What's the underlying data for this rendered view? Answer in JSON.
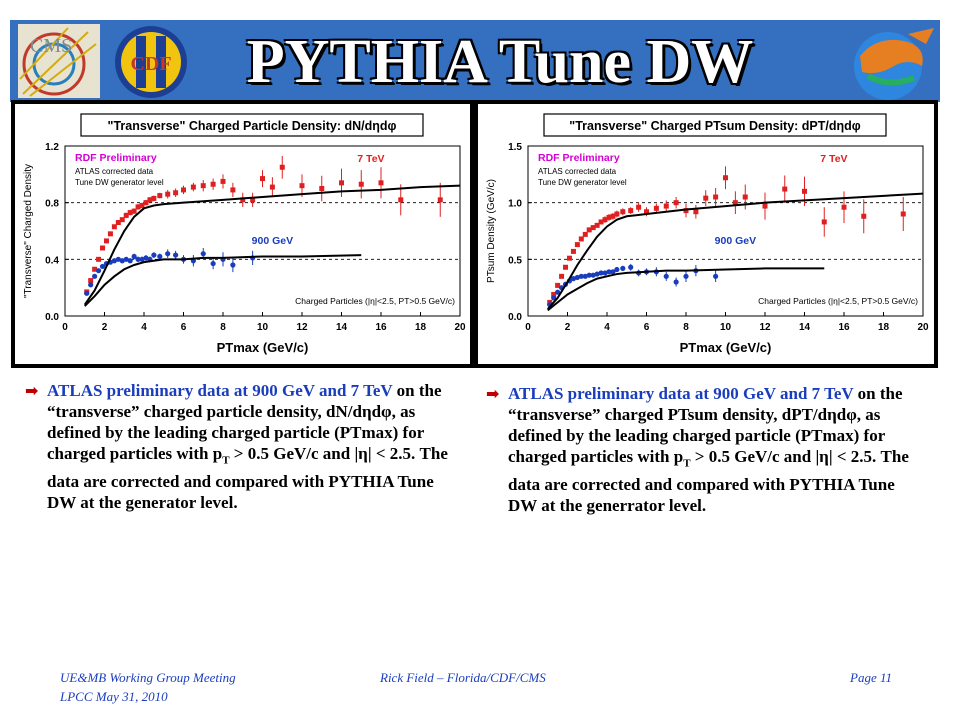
{
  "slide": {
    "title": "PYTHIA Tune DW",
    "logos": {
      "left": "CMS",
      "middle": "CDF",
      "right_icon": "florida-gator-icon"
    },
    "page": "Page 11",
    "footer_left_line1": "UE&MB Working Group Meeting",
    "footer_left_line2": "LPCC May 31, 2010",
    "footer_center": "Rick Field – Florida/CDF/CMS"
  },
  "left_bullet": {
    "p1_blue": "ATLAS preliminary data at 900 GeV and 7 TeV",
    "p2": " on the “transverse” charged particle density, dN/dηdφ, as defined by the leading charged particle (PTmax) for charged particles with p",
    "sub": "T",
    "p3": " > 0.5 GeV/c and |η| < 2.5. The data are corrected and compared with PYTHIA Tune DW at the generator level."
  },
  "right_bullet": {
    "p1_blue": "ATLAS preliminary data at 900 GeV and 7 TeV",
    "p2": " on the “transverse” charged PTsum density, dPT/dηdφ, as defined by the leading charged particle (PTmax) for charged particles with p",
    "sub": "T",
    "p3": " > 0.5 GeV/c and |η| < 2.5. The data are corrected and compared with PYTHIA Tune DW at the generrator level."
  },
  "chart_data": [
    {
      "type": "scatter",
      "title": "\"Transverse\" Charged Particle Density: dN/dηdφ",
      "xlabel": "PTmax (GeV/c)",
      "ylabel": "\"Transverse\" Charged Density",
      "xlim": [
        0,
        20
      ],
      "ylim": [
        0,
        1.2
      ],
      "xticks": [
        "0",
        "2",
        "4",
        "6",
        "8",
        "10",
        "12",
        "14",
        "16",
        "18",
        "20"
      ],
      "yticks": [
        "0.0",
        "0.4",
        "0.8",
        "1.2"
      ],
      "dashed_y": [
        0.4,
        0.8
      ],
      "annotations": [
        "RDF Preliminary",
        "ATLAS corrected data",
        "Tune DW generator level",
        "Charged Particles (|η|<2.5, PT>0.5 GeV/c)"
      ],
      "series": [
        {
          "name": "7 TeV",
          "color": "#e02020",
          "marker": "square",
          "x": [
            1.1,
            1.3,
            1.5,
            1.7,
            1.9,
            2.1,
            2.3,
            2.5,
            2.7,
            2.9,
            3.1,
            3.3,
            3.5,
            3.7,
            3.9,
            4.1,
            4.3,
            4.5,
            4.8,
            5.2,
            5.6,
            6.0,
            6.5,
            7.0,
            7.5,
            8.0,
            8.5,
            9.0,
            9.5,
            10.0,
            10.5,
            11.0,
            12.0,
            13.0,
            14.0,
            15.0,
            16.0,
            17.0,
            19.0
          ],
          "y": [
            0.17,
            0.25,
            0.33,
            0.4,
            0.48,
            0.53,
            0.58,
            0.63,
            0.66,
            0.68,
            0.71,
            0.73,
            0.74,
            0.77,
            0.78,
            0.8,
            0.82,
            0.83,
            0.85,
            0.86,
            0.87,
            0.89,
            0.91,
            0.92,
            0.93,
            0.95,
            0.89,
            0.82,
            0.82,
            0.97,
            0.91,
            1.05,
            0.92,
            0.9,
            0.94,
            0.93,
            0.94,
            0.82,
            0.82
          ],
          "err": [
            0.01,
            0.01,
            0.01,
            0.01,
            0.01,
            0.01,
            0.01,
            0.01,
            0.01,
            0.01,
            0.02,
            0.02,
            0.02,
            0.02,
            0.02,
            0.02,
            0.02,
            0.02,
            0.02,
            0.03,
            0.03,
            0.03,
            0.03,
            0.04,
            0.04,
            0.05,
            0.05,
            0.05,
            0.05,
            0.06,
            0.07,
            0.08,
            0.08,
            0.09,
            0.1,
            0.1,
            0.11,
            0.11,
            0.12
          ]
        },
        {
          "name": "900 GeV",
          "color": "#1a3dbd",
          "marker": "circle",
          "x": [
            1.1,
            1.3,
            1.5,
            1.7,
            1.9,
            2.1,
            2.3,
            2.5,
            2.7,
            2.9,
            3.1,
            3.3,
            3.5,
            3.7,
            3.9,
            4.1,
            4.3,
            4.5,
            4.8,
            5.2,
            5.6,
            6.0,
            6.5,
            7.0,
            7.5,
            8.0,
            8.5,
            9.5
          ],
          "y": [
            0.16,
            0.22,
            0.28,
            0.32,
            0.35,
            0.37,
            0.38,
            0.39,
            0.4,
            0.39,
            0.4,
            0.39,
            0.42,
            0.4,
            0.4,
            0.41,
            0.4,
            0.43,
            0.42,
            0.44,
            0.43,
            0.4,
            0.39,
            0.44,
            0.37,
            0.4,
            0.36,
            0.41
          ],
          "err": [
            0.01,
            0.01,
            0.01,
            0.01,
            0.01,
            0.01,
            0.01,
            0.01,
            0.01,
            0.01,
            0.01,
            0.01,
            0.02,
            0.02,
            0.02,
            0.02,
            0.02,
            0.02,
            0.02,
            0.03,
            0.03,
            0.03,
            0.04,
            0.04,
            0.04,
            0.05,
            0.05,
            0.05
          ]
        },
        {
          "name": "Tune DW 7 TeV",
          "color": "#000000",
          "marker": "line",
          "x": [
            1.0,
            1.5,
            2.0,
            2.5,
            3.0,
            3.5,
            4.0,
            4.5,
            5.0,
            6.0,
            7.0,
            8.0,
            10.0,
            12.0,
            14.0,
            16.0,
            18.0,
            20.0
          ],
          "y": [
            0.08,
            0.18,
            0.32,
            0.47,
            0.6,
            0.7,
            0.76,
            0.78,
            0.79,
            0.8,
            0.81,
            0.82,
            0.84,
            0.86,
            0.88,
            0.89,
            0.91,
            0.92
          ]
        },
        {
          "name": "Tune DW 900 GeV",
          "color": "#000000",
          "marker": "line",
          "x": [
            1.0,
            1.5,
            2.0,
            2.5,
            3.0,
            3.5,
            4.0,
            4.5,
            5.0,
            6.0,
            7.0,
            8.0,
            10.0,
            12.0,
            15.0
          ],
          "y": [
            0.07,
            0.14,
            0.22,
            0.28,
            0.33,
            0.36,
            0.38,
            0.39,
            0.4,
            0.4,
            0.41,
            0.41,
            0.42,
            0.42,
            0.43
          ]
        }
      ]
    },
    {
      "type": "scatter",
      "title": "\"Transverse\" Charged PTsum Density: dPT/dηdφ",
      "xlabel": "PTmax (GeV/c)",
      "ylabel": "PTsum Density (GeV/c)",
      "xlim": [
        0,
        20
      ],
      "ylim": [
        0,
        1.5
      ],
      "xticks": [
        "0",
        "2",
        "4",
        "6",
        "8",
        "10",
        "12",
        "14",
        "16",
        "18",
        "20"
      ],
      "yticks": [
        "0.0",
        "0.5",
        "1.0",
        "1.5"
      ],
      "dashed_y": [
        0.5,
        1.0
      ],
      "annotations": [
        "RDF Preliminary",
        "ATLAS corrected data",
        "Tune DW generator level",
        "Charged Particles (|η|<2.5, PT>0.5 GeV/c)"
      ],
      "series": [
        {
          "name": "7 TeV",
          "color": "#e02020",
          "marker": "square",
          "x": [
            1.1,
            1.3,
            1.5,
            1.7,
            1.9,
            2.1,
            2.3,
            2.5,
            2.7,
            2.9,
            3.1,
            3.3,
            3.5,
            3.7,
            3.9,
            4.1,
            4.3,
            4.5,
            4.8,
            5.2,
            5.6,
            6.0,
            6.5,
            7.0,
            7.5,
            8.0,
            8.5,
            9.0,
            9.5,
            10.0,
            10.5,
            11.0,
            12.0,
            13.0,
            14.0,
            15.0,
            16.0,
            17.0,
            19.0
          ],
          "y": [
            0.12,
            0.19,
            0.27,
            0.35,
            0.43,
            0.51,
            0.57,
            0.63,
            0.68,
            0.72,
            0.76,
            0.78,
            0.8,
            0.83,
            0.85,
            0.87,
            0.88,
            0.9,
            0.92,
            0.93,
            0.96,
            0.92,
            0.95,
            0.97,
            1.0,
            0.93,
            0.92,
            1.04,
            1.05,
            1.22,
            1.0,
            1.05,
            0.97,
            1.12,
            1.1,
            0.83,
            0.96,
            0.88,
            0.9
          ],
          "err": [
            0.01,
            0.01,
            0.01,
            0.01,
            0.01,
            0.01,
            0.01,
            0.01,
            0.02,
            0.02,
            0.02,
            0.02,
            0.02,
            0.02,
            0.03,
            0.03,
            0.03,
            0.03,
            0.03,
            0.03,
            0.04,
            0.04,
            0.04,
            0.05,
            0.05,
            0.06,
            0.06,
            0.07,
            0.08,
            0.1,
            0.1,
            0.11,
            0.12,
            0.12,
            0.13,
            0.13,
            0.14,
            0.15,
            0.15
          ]
        },
        {
          "name": "900 GeV",
          "color": "#1a3dbd",
          "marker": "circle",
          "x": [
            1.1,
            1.3,
            1.5,
            1.7,
            1.9,
            2.1,
            2.3,
            2.5,
            2.7,
            2.9,
            3.1,
            3.3,
            3.5,
            3.7,
            3.9,
            4.1,
            4.3,
            4.5,
            4.8,
            5.2,
            5.6,
            6.0,
            6.5,
            7.0,
            7.5,
            8.0,
            8.5,
            9.5
          ],
          "y": [
            0.1,
            0.16,
            0.21,
            0.25,
            0.28,
            0.31,
            0.33,
            0.34,
            0.35,
            0.35,
            0.36,
            0.36,
            0.37,
            0.38,
            0.38,
            0.39,
            0.39,
            0.41,
            0.42,
            0.43,
            0.38,
            0.39,
            0.39,
            0.35,
            0.3,
            0.35,
            0.4,
            0.35
          ],
          "err": [
            0.01,
            0.01,
            0.01,
            0.01,
            0.01,
            0.01,
            0.01,
            0.01,
            0.01,
            0.01,
            0.01,
            0.01,
            0.02,
            0.02,
            0.02,
            0.02,
            0.02,
            0.02,
            0.02,
            0.03,
            0.03,
            0.03,
            0.04,
            0.04,
            0.04,
            0.05,
            0.05,
            0.05
          ]
        },
        {
          "name": "Tune DW 7 TeV",
          "color": "#000000",
          "marker": "line",
          "x": [
            1.0,
            1.5,
            2.0,
            2.5,
            3.0,
            3.5,
            4.0,
            4.5,
            5.0,
            6.0,
            7.0,
            8.0,
            10.0,
            12.0,
            14.0,
            16.0,
            18.0,
            20.0
          ],
          "y": [
            0.06,
            0.16,
            0.3,
            0.45,
            0.58,
            0.7,
            0.79,
            0.85,
            0.88,
            0.9,
            0.92,
            0.94,
            0.97,
            1.0,
            1.02,
            1.04,
            1.06,
            1.08
          ]
        },
        {
          "name": "Tune DW 900 GeV",
          "color": "#000000",
          "marker": "line",
          "x": [
            1.0,
            1.5,
            2.0,
            2.5,
            3.0,
            3.5,
            4.0,
            4.5,
            5.0,
            6.0,
            7.0,
            8.0,
            10.0,
            12.0,
            15.0
          ],
          "y": [
            0.05,
            0.12,
            0.19,
            0.24,
            0.29,
            0.33,
            0.35,
            0.37,
            0.38,
            0.39,
            0.4,
            0.4,
            0.41,
            0.42,
            0.42
          ]
        }
      ]
    }
  ]
}
